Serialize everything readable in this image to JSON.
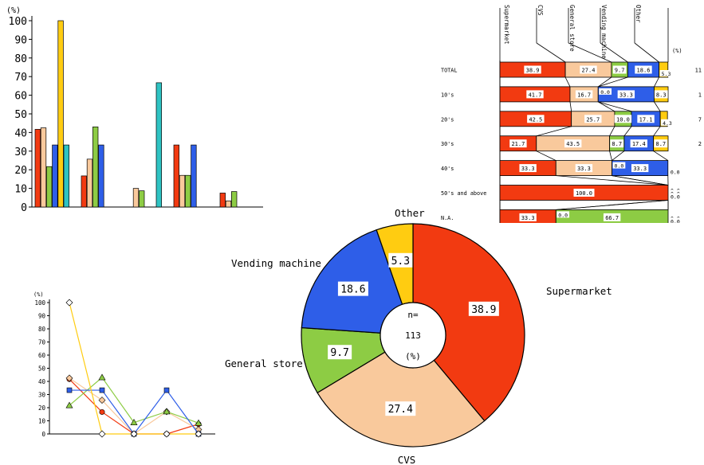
{
  "colors": {
    "Supermarket": "#f23a11",
    "CVS": "#f9c99c",
    "General store": "#8dcc44",
    "Vending machine": "#2e5ee8",
    "Other": "#ffcc11",
    "cyan": "#2fc3c3",
    "white": "#ffffff"
  },
  "chart_data": [
    {
      "type": "bar",
      "ylabel": "(%)",
      "ylim": [
        0,
        100
      ],
      "yticks": [
        0,
        10,
        20,
        30,
        40,
        50,
        60,
        70,
        80,
        90,
        100
      ],
      "categories": [
        "",
        "",
        "",
        "",
        ""
      ],
      "series": [
        {
          "color": "Supermarket",
          "values": [
            41.7,
            16.7,
            0,
            33.3,
            7.5
          ]
        },
        {
          "color": "CVS",
          "values": [
            42.5,
            25.7,
            10,
            17,
            3.3
          ]
        },
        {
          "color": "General store",
          "values": [
            21.7,
            43,
            8.7,
            17,
            8.3
          ]
        },
        {
          "color": "Vending machine",
          "values": [
            33.3,
            33.3,
            0,
            33.3,
            0
          ]
        },
        {
          "color": "Other",
          "values": [
            100,
            0,
            0,
            0,
            0
          ]
        },
        {
          "color": "cyan",
          "values": [
            33.3,
            0,
            66.7,
            0,
            0
          ]
        }
      ]
    },
    {
      "type": "stacked-bar",
      "unit": "(%)",
      "columns": [
        "Supermarket",
        "CVS",
        "General store",
        "Vending machine",
        "Other"
      ],
      "rows": [
        {
          "label": "TOTAL",
          "n": "11",
          "values": [
            38.9,
            27.4,
            9.7,
            18.6,
            5.3
          ],
          "labels": [
            "38.9",
            "27.4",
            "9.7",
            "18.6",
            "5.3"
          ]
        },
        {
          "label": "10's",
          "n": "1",
          "values": [
            41.7,
            16.7,
            0,
            33.3,
            8.3
          ],
          "labels": [
            "41.7",
            "16.7",
            "0.0",
            "33.3",
            "8.3"
          ]
        },
        {
          "label": "20's",
          "n": "7",
          "values": [
            42.5,
            25.7,
            10.0,
            17.1,
            4.3
          ],
          "labels": [
            "42.5",
            "25.7",
            "10.0",
            "17.1",
            "4.3"
          ]
        },
        {
          "label": "30's",
          "n": "2",
          "values": [
            21.7,
            43.5,
            8.7,
            17.4,
            8.7
          ],
          "labels": [
            "21.7",
            "43.5",
            "8.7",
            "17.4",
            "8.7"
          ]
        },
        {
          "label": "40's",
          "n": "",
          "values": [
            33.3,
            33.3,
            0,
            33.3,
            0
          ],
          "labels": [
            "33.3",
            "33.3",
            "0.0",
            "33.3",
            "0.0"
          ]
        },
        {
          "label": "50's and above",
          "n": "",
          "values": [
            100,
            0,
            0,
            0,
            0
          ],
          "labels": [
            "100.0",
            "0.0",
            "0.0",
            "0.0",
            "0.0"
          ]
        },
        {
          "label": "N.A.",
          "n": "",
          "values": [
            33.3,
            0,
            66.7,
            0,
            0
          ],
          "labels": [
            "33.3",
            "0.0",
            "66.7",
            "0.0",
            "0.0"
          ]
        }
      ]
    },
    {
      "type": "pie",
      "center_text": [
        "n=",
        "113",
        "(%)"
      ],
      "slices": [
        {
          "name": "Supermarket",
          "value": 38.9,
          "label": "38.9"
        },
        {
          "name": "CVS",
          "value": 27.4,
          "label": "27.4"
        },
        {
          "name": "General store",
          "value": 9.7,
          "label": "9.7"
        },
        {
          "name": "Vending machine",
          "value": 18.6,
          "label": "18.6"
        },
        {
          "name": "Other",
          "value": 5.3,
          "label": "5.3"
        }
      ]
    },
    {
      "type": "line",
      "ylabel": "(%)",
      "ylim": [
        0,
        100
      ],
      "yticks": [
        0,
        10,
        20,
        30,
        40,
        50,
        60,
        70,
        80,
        90,
        100
      ],
      "x": [
        "",
        "",
        "",
        "",
        ""
      ],
      "series": [
        {
          "color": "Supermarket",
          "marker": "circle",
          "values": [
            41.7,
            16.7,
            0,
            0,
            7.5
          ]
        },
        {
          "color": "CVS",
          "marker": "diamond",
          "values": [
            42.5,
            25.7,
            0,
            17,
            3.3
          ]
        },
        {
          "color": "General store",
          "marker": "triangle",
          "values": [
            21.7,
            43,
            8.7,
            17,
            8.3
          ]
        },
        {
          "color": "Vending machine",
          "marker": "square",
          "values": [
            33.3,
            33.3,
            0,
            33.3,
            0
          ]
        },
        {
          "color": "Other",
          "marker": "diamond-open",
          "values": [
            100,
            0,
            0,
            0,
            0
          ]
        }
      ]
    }
  ]
}
